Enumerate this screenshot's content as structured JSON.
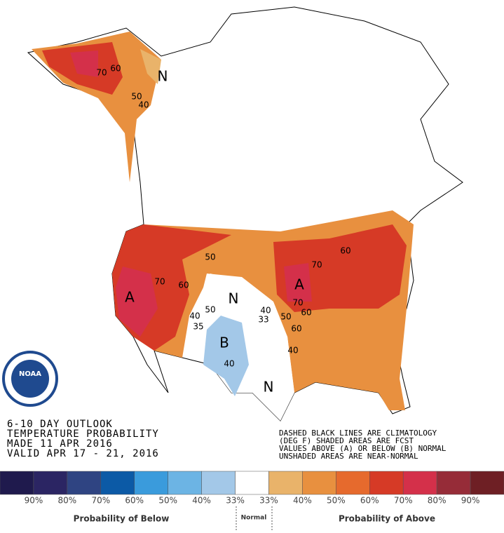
{
  "outlook": {
    "lines": [
      "6-10 DAY OUTLOOK",
      "TEMPERATURE PROBABILITY",
      "MADE  11 APR 2016",
      "VALID  APR 17 - 21, 2016"
    ]
  },
  "notes": {
    "lines": [
      "DASHED BLACK LINES ARE CLIMATOLOGY",
      "(DEG F) SHADED AREAS ARE FCST",
      "VALUES ABOVE (A) OR BELOW (B) NORMAL",
      "UNSHADED AREAS ARE NEAR-NORMAL"
    ]
  },
  "logo": {
    "text": "NOAA"
  },
  "legend": {
    "colors": [
      "#1f1a4d",
      "#2b2563",
      "#2f4482",
      "#0c5aa6",
      "#3a9bdc",
      "#6cb4e4",
      "#a3c8e8",
      "#ffffff",
      "#e9b36a",
      "#e8903f",
      "#e66a2d",
      "#d63a26",
      "#d4304a",
      "#962c38",
      "#6e1f24"
    ],
    "labels": [
      "90%",
      "80%",
      "70%",
      "60%",
      "50%",
      "40%",
      "33%",
      "33%",
      "40%",
      "50%",
      "60%",
      "70%",
      "80%",
      "90%"
    ],
    "below": "Probability of Below",
    "normal": "Normal",
    "above": "Probability of Above"
  },
  "map_labels": [
    "70",
    "60",
    "50",
    "40",
    "N",
    "50",
    "60",
    "70",
    "A",
    "50",
    "70",
    "60",
    "40",
    "35",
    "N",
    "40",
    "33",
    "B",
    "40",
    "A",
    "70",
    "60",
    "50",
    "40",
    "N",
    "60"
  ]
}
